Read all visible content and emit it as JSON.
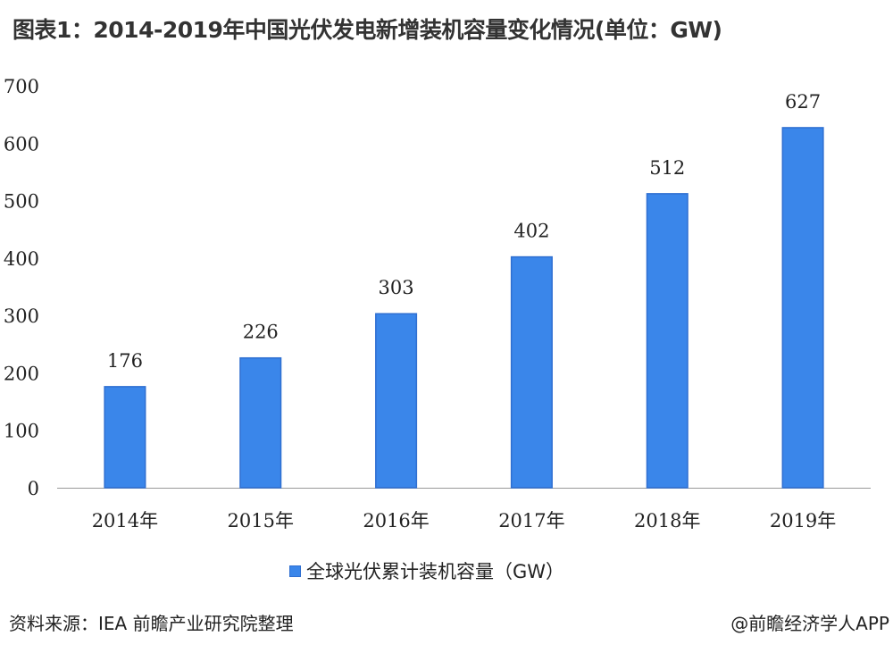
{
  "title": "图表1：2014-2019年中国光伏发电新增装机容量变化情况(单位：GW)",
  "footer": {
    "source": "资料来源：IEA 前瞻产业研究院整理",
    "credit": "@前瞻经济学人APP"
  },
  "colors": {
    "bar": "#3a86ea",
    "bar_border": "#2f6fd1",
    "axis": "#999999"
  },
  "chart_data": {
    "type": "bar",
    "categories": [
      "2014年",
      "2015年",
      "2016年",
      "2017年",
      "2018年",
      "2019年"
    ],
    "series": [
      {
        "name": "全球光伏累计装机容量（GW）",
        "values": [
          176,
          226,
          303,
          402,
          512,
          627
        ]
      }
    ],
    "ylim": [
      0,
      700
    ],
    "yticks": [
      0,
      100,
      200,
      300,
      400,
      500,
      600,
      700
    ],
    "data_labels": true,
    "grid": false,
    "legend_position": "bottom"
  }
}
